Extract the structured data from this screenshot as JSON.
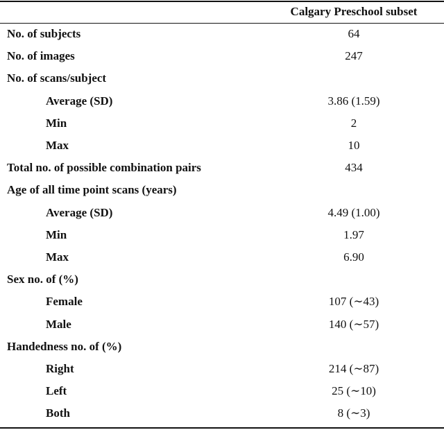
{
  "table": {
    "header": "Calgary Preschool subset",
    "rows": [
      {
        "label": "No. of subjects",
        "value": "64"
      },
      {
        "label": "No. of images",
        "value": "247"
      },
      {
        "label": "No. of scans/subject",
        "items": [
          {
            "label": "Average (SD)",
            "value": "3.86 (1.59)"
          },
          {
            "label": "Min",
            "value": "2"
          },
          {
            "label": "Max",
            "value": "10"
          }
        ]
      },
      {
        "label": "Total no. of possible combination pairs",
        "value": "434"
      },
      {
        "label": "Age of all time point scans (years)",
        "items": [
          {
            "label": "Average (SD)",
            "value": "4.49 (1.00)"
          },
          {
            "label": "Min",
            "value": "1.97"
          },
          {
            "label": "Max",
            "value": "6.90"
          }
        ]
      },
      {
        "label": "Sex no. of (%)",
        "items": [
          {
            "label": "Female",
            "value": "107 (∼43)"
          },
          {
            "label": "Male",
            "value": "140 (∼57)"
          }
        ]
      },
      {
        "label": "Handedness no. of (%)",
        "items": [
          {
            "label": "Right",
            "value": "214 (∼87)"
          },
          {
            "label": "Left",
            "value": "25 (∼10)"
          },
          {
            "label": "Both",
            "value": "8 (∼3)"
          }
        ]
      }
    ]
  }
}
